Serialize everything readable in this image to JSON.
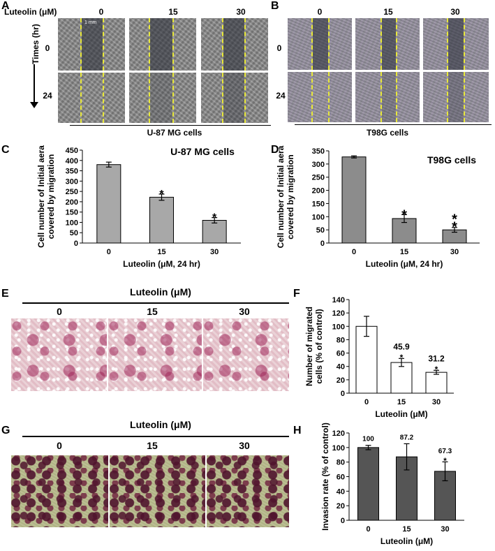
{
  "panels": {
    "A": {
      "letter": "A",
      "luteolin_label": "Luteolin  (μM)",
      "doses": [
        "0",
        "15",
        "30"
      ],
      "time_axis_label": "Times (hr)",
      "times": [
        "0",
        "24"
      ],
      "scale_text": "1 mm",
      "cell_line": "U-87 MG cells"
    },
    "B": {
      "letter": "B",
      "doses": [
        "0",
        "15",
        "30"
      ],
      "times": [
        "0",
        "24"
      ],
      "cell_line": "T98G cells"
    },
    "C": {
      "letter": "C"
    },
    "D": {
      "letter": "D"
    },
    "E": {
      "letter": "E",
      "luteolin_label": "Luteolin (μM)",
      "doses": [
        "0",
        "15",
        "30"
      ]
    },
    "F": {
      "letter": "F"
    },
    "G": {
      "letter": "G",
      "luteolin_label": "Luteolin (μM)",
      "doses": [
        "0",
        "15",
        "30"
      ]
    },
    "H": {
      "letter": "H"
    }
  },
  "chart_data": [
    {
      "id": "C",
      "type": "bar",
      "title": "U-87 MG cells",
      "categories": [
        "0",
        "15",
        "30"
      ],
      "values": [
        380,
        222,
        110
      ],
      "errors": [
        12,
        15,
        13
      ],
      "significance": [
        "",
        "*",
        "*"
      ],
      "ylabel": "Cell number of Initial aera covered by migration",
      "xlabel": "Luteolin (μM, 24 hr)",
      "ylim": [
        0,
        450
      ],
      "yticks": [
        "0",
        "50",
        "100",
        "150",
        "200",
        "250",
        "300",
        "350",
        "400",
        "450"
      ],
      "bar_color": "#a8a8a8"
    },
    {
      "id": "D",
      "type": "bar",
      "title": "T98G cells",
      "categories": [
        "0",
        "15",
        "30"
      ],
      "values": [
        327,
        93,
        50
      ],
      "errors": [
        4,
        15,
        9
      ],
      "significance": [
        "",
        "*",
        "**"
      ],
      "ylabel": "Cell number of Initial aera covered by migration",
      "xlabel": "Luteolin (μM, 24 hr)",
      "ylim": [
        0,
        350
      ],
      "yticks": [
        "0",
        "50",
        "100",
        "150",
        "200",
        "250",
        "300",
        "350"
      ],
      "bar_color": "#8c8c8c"
    },
    {
      "id": "F",
      "type": "bar",
      "title": "",
      "categories": [
        "0",
        "15",
        "30"
      ],
      "values": [
        100,
        45.9,
        31.2
      ],
      "errors": [
        15,
        6,
        3
      ],
      "data_labels": [
        "",
        "45.9",
        "31.2"
      ],
      "significance": [
        "",
        "*",
        "*"
      ],
      "ylabel": "Number of migrated cells (% of control)",
      "xlabel": "Luteolin (μM)",
      "ylim": [
        0,
        140
      ],
      "yticks": [
        "0",
        "20",
        "40",
        "60",
        "80",
        "100",
        "120",
        "140"
      ],
      "bar_color": "#ffffff"
    },
    {
      "id": "H",
      "type": "bar",
      "title": "",
      "categories": [
        "0",
        "15",
        "30"
      ],
      "values": [
        100,
        87.2,
        67.3
      ],
      "errors": [
        3,
        18,
        13
      ],
      "data_labels": [
        "100",
        "87.2",
        "67.3"
      ],
      "significance": [
        "",
        "",
        "*"
      ],
      "ylabel": "Invasion rate (% of control)",
      "xlabel": "Luteolin (μM)",
      "ylim": [
        0,
        120
      ],
      "yticks": [
        "0",
        "20",
        "40",
        "60",
        "80",
        "100",
        "120"
      ],
      "bar_color": "#555555"
    }
  ]
}
